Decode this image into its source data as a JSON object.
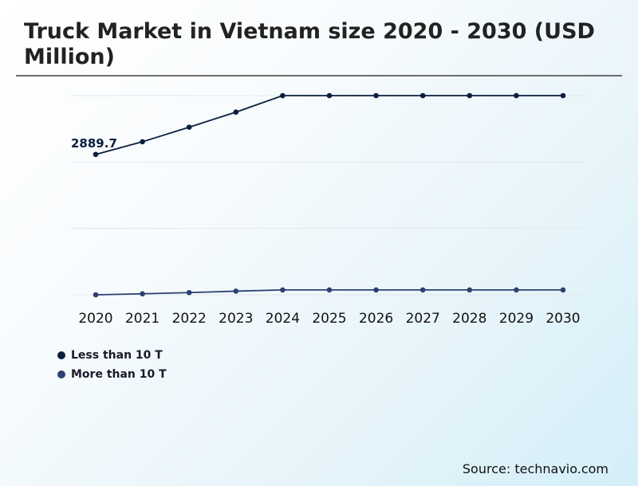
{
  "title": "Truck Market in Vietnam size 2020 - 2030 (USD Million)",
  "source": "Source: technavio.com",
  "colors": {
    "series1": "#0b1d3f",
    "series2": "#2c4170",
    "grid": "#e3e8ec"
  },
  "chart_data": {
    "type": "line",
    "title": "Truck Market in Vietnam size 2020 - 2030 (USD Million)",
    "xlabel": "",
    "ylabel": "",
    "x": [
      "2020",
      "2021",
      "2022",
      "2023",
      "2024",
      "2025",
      "2026",
      "2027",
      "2028",
      "2029",
      "2030"
    ],
    "series": [
      {
        "name": "Less than 10 T",
        "values": [
          2889.7,
          3150,
          3450,
          3760,
          4100,
          4100,
          4100,
          4100,
          4100,
          4100,
          4100
        ]
      },
      {
        "name": "More than 10 T",
        "values": [
          0,
          20,
          45,
          75,
          100,
          100,
          100,
          100,
          100,
          100,
          100
        ]
      }
    ],
    "annotations": [
      {
        "series": 0,
        "index": 0,
        "text": "2889.7"
      }
    ],
    "ylim": [
      0,
      4500
    ],
    "grid": true,
    "legend_position": "bottom-left"
  }
}
